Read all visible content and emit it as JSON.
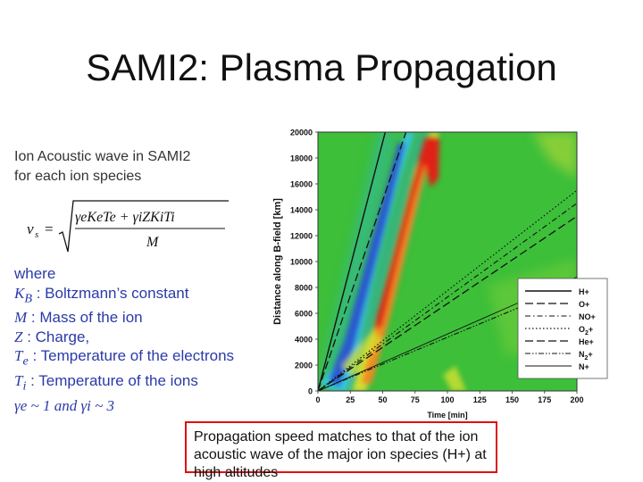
{
  "slide": {
    "title": "SAMI2: Plasma Propagation",
    "intro": [
      "Ion Acoustic wave in SAMI2",
      "for each ion species"
    ]
  },
  "formula": {
    "lhs": "v",
    "lhs_sub": "s",
    "numerator": "γeKeTe + γiZKiTi",
    "denominator": "M"
  },
  "definitions": {
    "where": "where",
    "items": [
      {
        "symbol": "K",
        "sub": "B",
        "text": " : Boltzmann’s constant"
      },
      {
        "symbol": "M",
        "sub": "",
        "text": " : Mass of the ion"
      },
      {
        "symbol": "Z",
        "sub": "",
        "text": " : Charge,"
      },
      {
        "symbol": "T",
        "sub": "e",
        "text": " : Temperature of the electrons"
      },
      {
        "symbol": "T",
        "sub": "i",
        "text": " : Temperature of the ions"
      }
    ],
    "approx": "γe ~ 1 and γi ~ 3"
  },
  "callout": {
    "text": "Propagation speed matches to that of the ion acoustic wave of the major ion species (H+) at high altitudes"
  },
  "chart_data": {
    "type": "heatmap",
    "title": "",
    "xlabel": "Time [min]",
    "ylabel": "Distance along B-field [km]",
    "xlim": [
      0,
      200
    ],
    "ylim": [
      0,
      20000
    ],
    "x_ticks": [
      "0",
      "25",
      "50",
      "75",
      "100",
      "125",
      "150",
      "175",
      "200"
    ],
    "y_ticks": [
      "0",
      "2000",
      "4000",
      "6000",
      "8000",
      "10000",
      "12000",
      "14000",
      "16000",
      "18000",
      "20000"
    ],
    "grid": false,
    "legend_position": "bottom-right",
    "series": [
      {
        "name": "H+",
        "style": "solid",
        "x": [
          0,
          52
        ],
        "y": [
          0,
          20000
        ]
      },
      {
        "name": "O+",
        "style": "long-dash",
        "x": [
          0,
          68
        ],
        "y": [
          0,
          20000
        ]
      },
      {
        "name": "NO+",
        "style": "dash-dot",
        "x": [
          0,
          200
        ],
        "y": [
          0,
          14500
        ]
      },
      {
        "name": "O2+",
        "style": "dotted",
        "x": [
          0,
          200
        ],
        "y": [
          0,
          15500
        ]
      },
      {
        "name": "He+",
        "style": "long-dash",
        "x": [
          0,
          200
        ],
        "y": [
          0,
          13500
        ]
      },
      {
        "name": "N2+",
        "style": "dash-dot-dot",
        "x": [
          0,
          200
        ],
        "y": [
          0,
          8300
        ]
      },
      {
        "name": "N+",
        "style": "thin-solid",
        "x": [
          0,
          200
        ],
        "y": [
          0,
          8800
        ]
      }
    ],
    "legend_labels": [
      "H+",
      "O+",
      "NO+",
      "O",
      "He+",
      "N",
      "N+"
    ],
    "legend_subs": [
      "",
      "",
      "",
      "2",
      "",
      "2",
      ""
    ],
    "legend_supers": [
      "",
      "",
      "",
      "+",
      "",
      "+",
      ""
    ],
    "colors": {
      "background": "#3dbf3a",
      "red": "#e02018",
      "orange": "#f08a20",
      "yellow": "#d8e030",
      "cyan": "#40c8e0",
      "blue": "#2a5ad0"
    }
  }
}
